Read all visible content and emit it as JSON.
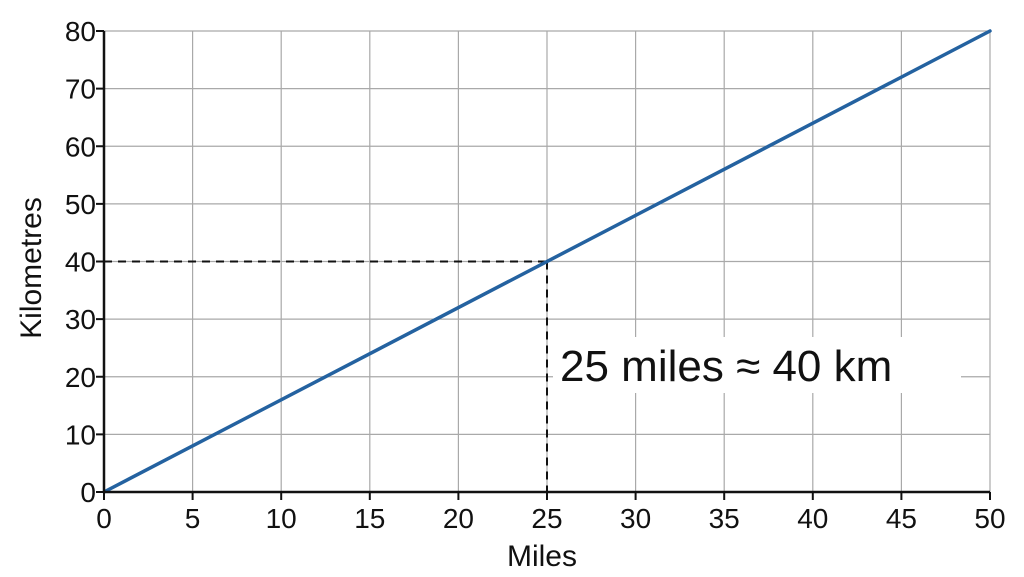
{
  "chart_data": {
    "type": "line",
    "title": "",
    "xlabel": "Miles",
    "ylabel": "Kilometres",
    "xlim": [
      0,
      50
    ],
    "ylim": [
      0,
      80
    ],
    "x_ticks": [
      "0",
      "5",
      "10",
      "15",
      "20",
      "25",
      "30",
      "35",
      "40",
      "45",
      "50"
    ],
    "y_ticks": [
      "0",
      "10",
      "20",
      "30",
      "40",
      "50",
      "60",
      "70",
      "80"
    ],
    "grid": true,
    "series": [
      {
        "x": [
          0,
          50
        ],
        "y": [
          0,
          80
        ],
        "color": "#2462a0"
      }
    ],
    "marker_point": {
      "x": 25,
      "y": 40
    },
    "annotation": "25 miles ≈ 40 km"
  }
}
